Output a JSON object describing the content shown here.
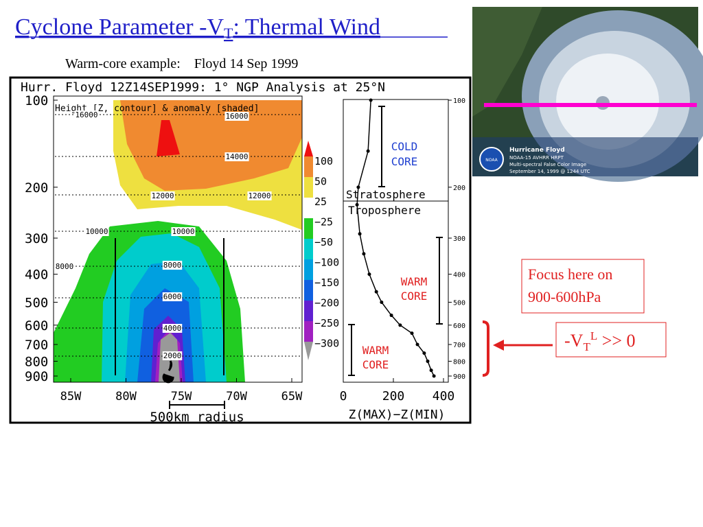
{
  "header": {
    "title": {
      "main": "Cyclone Parameter -V",
      "sub": "T",
      "rest": ":  Thermal Wind"
    },
    "subtitle": "Warm-core example:    Floyd 14 Sep 1999"
  },
  "figure": {
    "title": "Hurr. Floyd 12Z14SEP1999: 1° NGP Analysis at 25°N",
    "legend_label": "Height [Z, contour] & anomaly [shaded]",
    "pressure_ticks": [
      100,
      200,
      300,
      400,
      500,
      600,
      700,
      800,
      900
    ],
    "ylim": [
      100,
      900
    ],
    "log_y": true,
    "lon_ticks": [
      "85W",
      "80W",
      "75W",
      "70W",
      "65W"
    ],
    "contour_labels": [
      "16000",
      "16000",
      "14000",
      "12000",
      "12000",
      "10000",
      "10000",
      "8000",
      "8000",
      "6000",
      "4000",
      "2000"
    ],
    "colorbar_labels": [
      "100",
      "50",
      "25",
      "−25",
      "−50",
      "−100",
      "−150",
      "−200",
      "−250",
      "−300"
    ],
    "radius_label": "500km radius",
    "profile": {
      "xlabel": "Z(MAX)−Z(MIN)",
      "xlim": [
        0,
        400
      ],
      "xticks": [
        0,
        200,
        400
      ],
      "pressure": [
        100,
        150,
        200,
        230,
        290,
        340,
        400,
        460,
        500,
        555,
        600,
        640,
        700,
        750,
        800,
        860,
        900
      ],
      "values": [
        110,
        99,
        60,
        55,
        66,
        82,
        104,
        132,
        153,
        192,
        227,
        274,
        296,
        323,
        337,
        351,
        362
      ]
    },
    "stratosphere": "Stratosphere",
    "troposphere": "Troposphere",
    "cold_core": [
      "COLD",
      "CORE"
    ],
    "warm_core_upper": [
      "WARM",
      "CORE"
    ],
    "warm_core_lower": [
      "WARM",
      "CORE"
    ]
  },
  "satellite": {
    "caption": [
      "Hurricane Floyd",
      "NOAA-15 AVHRR HRPT",
      "Multi-spectral False Color Image",
      "September 14, 1999 @ 1244 UTC"
    ],
    "logo": "NOAA"
  },
  "focus_note": [
    "Focus here on",
    "900-600hPa"
  ],
  "vt_label": {
    "main": "-V",
    "sub": "T",
    "sup": "L",
    "rest": " >> 0"
  }
}
